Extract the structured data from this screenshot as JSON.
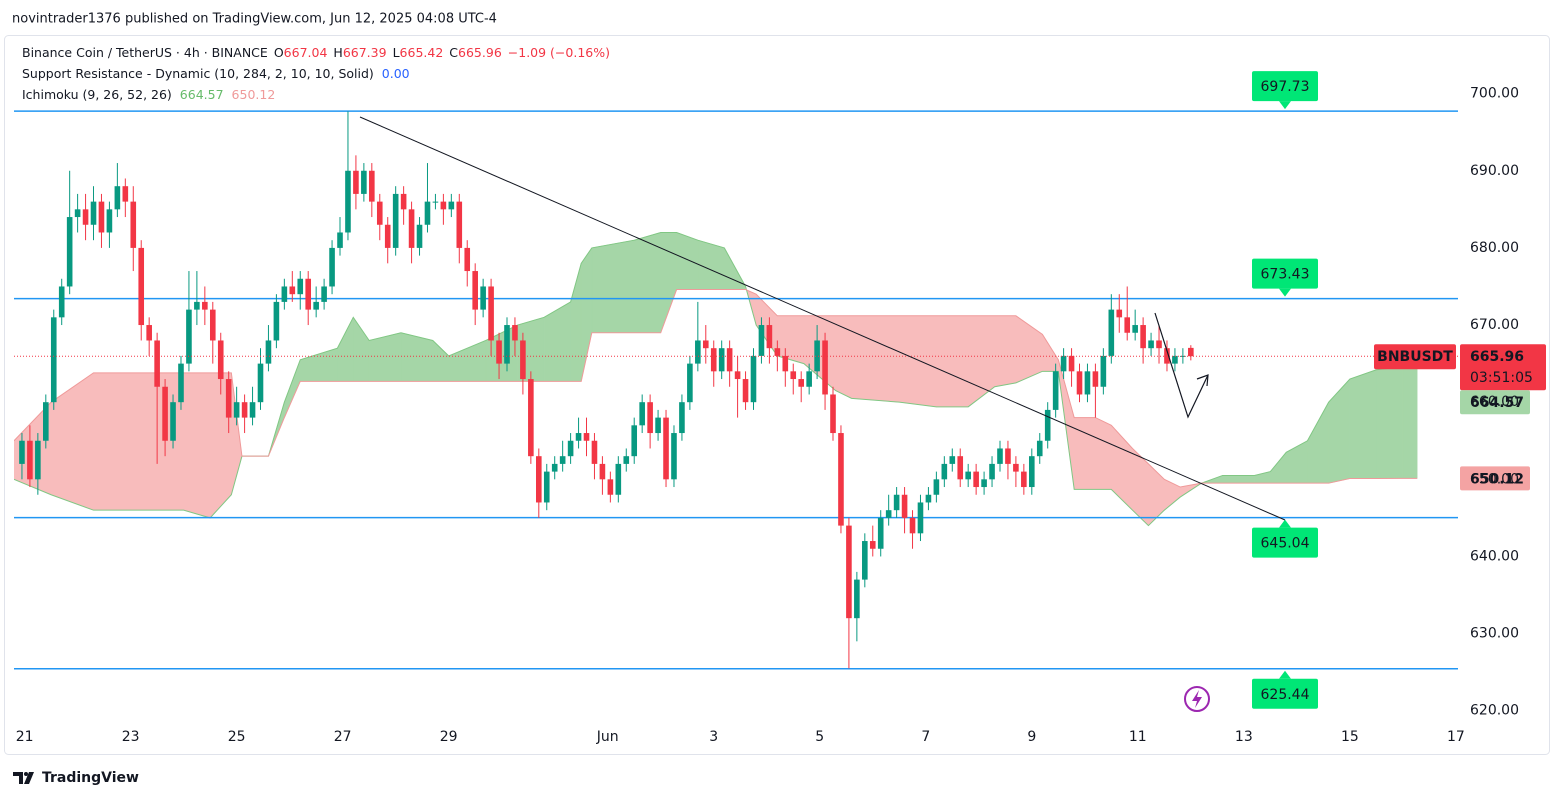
{
  "header": {
    "byline": "novintrader1376 published on TradingView.com, Jun 12, 2025 04:08 UTC-4"
  },
  "chart_data": {
    "type": "candlestick",
    "title": "Binance Coin / TetherUS · 4h · BINANCE",
    "legend_labels": {
      "open": "O",
      "high": "H",
      "low": "L",
      "close": "C"
    },
    "change": "−1.09 (−0.16%)",
    "countdown": "03:51:05",
    "indicator": {
      "name": "Support Resistance - Dynamic (10, 284, 2, 10, 10, Solid)",
      "value": "0.00",
      "color": "#2196f3",
      "label_color": "#00e676",
      "levels": [
        697.73,
        673.43,
        645.04,
        625.44
      ]
    },
    "series": [
      {
        "name": "BNBUSDT",
        "type": "candlestick",
        "up_color": "#089981",
        "down_color": "#f23645",
        "x": [
          20.95,
          21.1,
          21.25,
          21.4,
          21.55,
          21.7,
          21.85,
          22,
          22.15,
          22.3,
          22.45,
          22.6,
          22.75,
          22.9,
          23.05,
          23.2,
          23.35,
          23.5,
          23.65,
          23.8,
          23.95,
          24.1,
          24.25,
          24.4,
          24.55,
          24.7,
          24.85,
          25,
          25.15,
          25.3,
          25.45,
          25.6,
          25.75,
          25.9,
          26.05,
          26.2,
          26.35,
          26.5,
          26.65,
          26.8,
          26.95,
          27.1,
          27.25,
          27.4,
          27.55,
          27.7,
          27.85,
          28,
          28.15,
          28.3,
          28.45,
          28.6,
          28.75,
          28.9,
          29.05,
          29.2,
          29.35,
          29.5,
          29.65,
          29.8,
          29.95,
          30.1,
          30.25,
          30.4,
          30.55,
          30.7,
          30.85,
          31,
          31.15,
          31.3,
          31.45,
          31.6,
          31.75,
          31.9,
          32.05,
          32.2,
          32.35,
          32.5,
          32.65,
          32.8,
          32.95,
          33.1,
          33.25,
          33.4,
          33.55,
          33.7,
          33.85,
          34,
          34.15,
          34.3,
          34.45,
          34.6,
          34.75,
          34.9,
          35.05,
          35.2,
          35.35,
          35.5,
          35.65,
          35.8,
          35.95,
          36.1,
          36.25,
          36.4,
          36.55,
          36.7,
          36.85,
          37,
          37.15,
          37.3,
          37.45,
          37.6,
          37.75,
          37.9,
          38.05,
          38.2,
          38.35,
          38.5,
          38.65,
          38.8,
          38.95,
          39.1,
          39.25,
          39.4,
          39.55,
          39.7,
          39.85,
          40,
          40.15,
          40.3,
          40.45,
          40.6,
          40.75,
          40.9,
          41.05,
          41.2,
          41.35,
          41.5,
          41.65,
          41.8,
          41.95,
          42.1,
          42.25,
          42.4,
          42.55,
          42.7,
          42.85,
          43
        ],
        "open": [
          652,
          655,
          650,
          655,
          660,
          671,
          675,
          684,
          685,
          683,
          686,
          682,
          685,
          688,
          686,
          680,
          670,
          668,
          662,
          655,
          660,
          665,
          672,
          673,
          672,
          668,
          663,
          658,
          660,
          658,
          660,
          665,
          668,
          673,
          675,
          674,
          676,
          672,
          673,
          675,
          680,
          682,
          690,
          687,
          690,
          686,
          683,
          680,
          687,
          685,
          680,
          683,
          686,
          686,
          685,
          686,
          680,
          677,
          672,
          675,
          668,
          665,
          670,
          668,
          663,
          653,
          647,
          651,
          652,
          653,
          655,
          656,
          655,
          652,
          650,
          648,
          652,
          653,
          657,
          660,
          656,
          658,
          650,
          656,
          660,
          665,
          668,
          667,
          664,
          667,
          664,
          663,
          660,
          666,
          670,
          667,
          666,
          664,
          663,
          662,
          664,
          668,
          661,
          656,
          644,
          632,
          637,
          642,
          641,
          645,
          646,
          648,
          645,
          643,
          647,
          648,
          650,
          652,
          653,
          650,
          651,
          649,
          650,
          652,
          654,
          652,
          651,
          649,
          653,
          655,
          659,
          664,
          666,
          664,
          661,
          664,
          662,
          666,
          672,
          671,
          669,
          670,
          667,
          668,
          667,
          665,
          666,
          667.04
        ],
        "high": [
          656,
          657,
          656,
          661,
          672,
          676,
          690,
          687,
          687,
          688,
          687,
          686,
          691,
          689,
          688,
          681,
          671,
          669,
          663,
          661,
          666,
          677,
          677,
          675,
          673,
          669,
          664,
          662,
          661,
          662,
          667,
          670,
          674,
          676,
          677,
          677,
          677,
          675,
          676,
          681,
          684,
          697.7,
          692,
          691,
          691,
          687,
          684,
          688,
          688,
          686,
          684,
          691,
          687,
          687,
          687,
          687,
          681,
          678,
          676,
          676,
          669,
          671,
          671,
          669,
          664,
          654,
          652,
          653,
          655,
          656,
          658,
          658,
          656,
          653,
          651,
          653,
          654,
          658,
          661,
          661,
          659,
          659,
          657,
          661,
          666,
          673,
          670,
          668,
          668,
          668,
          666,
          664,
          667,
          671,
          671,
          668,
          667,
          665,
          664,
          665,
          670,
          669,
          662,
          657,
          645,
          638,
          643,
          644,
          646,
          648,
          649,
          649,
          646,
          648,
          649,
          651,
          653,
          654,
          654,
          652,
          652,
          651,
          653,
          655,
          655,
          653,
          652,
          654,
          656,
          660,
          665,
          667,
          667,
          665,
          665,
          665,
          667,
          674,
          674,
          675,
          672,
          671,
          669,
          670,
          668,
          667,
          667,
          667.39
        ],
        "low": [
          650,
          649,
          648,
          654,
          659,
          670,
          674,
          682,
          681,
          681,
          680,
          680,
          684,
          684,
          677,
          668,
          666,
          652,
          653,
          654,
          659,
          664,
          670,
          670,
          665,
          661,
          656,
          657,
          656,
          657,
          659,
          664,
          667,
          672,
          673,
          672,
          670,
          671,
          672,
          674,
          679,
          681,
          685,
          686,
          684,
          681,
          678,
          679,
          683,
          678,
          679,
          682,
          685,
          683,
          684,
          678,
          675,
          670,
          671,
          666,
          663,
          664,
          666,
          661,
          652,
          645,
          646,
          650,
          651,
          652,
          654,
          653,
          650,
          648,
          647,
          647,
          651,
          652,
          656,
          654,
          655,
          649,
          649,
          655,
          659,
          664,
          665,
          662,
          663,
          662,
          658,
          659,
          659,
          665,
          665,
          664,
          662,
          661,
          660,
          661,
          663,
          659,
          655,
          643,
          625.5,
          629,
          636,
          640,
          640,
          644,
          645,
          643,
          641,
          642,
          646,
          647,
          649,
          651,
          649,
          649,
          648,
          648,
          649,
          651,
          650,
          649,
          648,
          648,
          652,
          654,
          658,
          663,
          662,
          660,
          660,
          658,
          661,
          665,
          669,
          668,
          668,
          665,
          666,
          665,
          664,
          664,
          665,
          665.42
        ],
        "close": [
          655,
          650,
          655,
          660,
          671,
          675,
          684,
          685,
          683,
          686,
          682,
          685,
          688,
          686,
          680,
          670,
          668,
          662,
          655,
          660,
          665,
          672,
          673,
          672,
          668,
          663,
          658,
          660,
          658,
          660,
          665,
          668,
          673,
          675,
          674,
          676,
          672,
          673,
          675,
          680,
          682,
          690,
          687,
          690,
          686,
          683,
          680,
          687,
          685,
          680,
          683,
          686,
          686,
          685,
          686,
          680,
          677,
          672,
          675,
          668,
          665,
          670,
          668,
          663,
          653,
          647,
          651,
          652,
          653,
          655,
          656,
          655,
          652,
          650,
          648,
          652,
          653,
          657,
          660,
          656,
          658,
          650,
          656,
          660,
          665,
          668,
          667,
          664,
          667,
          664,
          663,
          660,
          666,
          670,
          667,
          666,
          664,
          663,
          662,
          664,
          668,
          661,
          656,
          644,
          632,
          637,
          642,
          641,
          645,
          646,
          648,
          645,
          643,
          647,
          648,
          650,
          652,
          653,
          650,
          651,
          649,
          650,
          652,
          654,
          652,
          651,
          649,
          653,
          655,
          659,
          664,
          666,
          664,
          661,
          664,
          662,
          666,
          672,
          671,
          669,
          670,
          667,
          668,
          667,
          665,
          666,
          666,
          665.96
        ]
      },
      {
        "name": "Ichimoku (9, 26, 52, 26)",
        "type": "ichimoku",
        "up_color": "#a5d6a7",
        "down_color": "#f8bcbc",
        "up_line": "#81c784",
        "down_line": "#ef9a9a",
        "x": [
          20.8,
          21.5,
          22.3,
          23,
          24,
          24.5,
          24.9,
          25.1,
          25.6,
          25.9,
          26.2,
          26.9,
          27.2,
          27.5,
          28.1,
          28.7,
          29,
          29.7,
          30.3,
          30.8,
          31.3,
          31.5,
          31.7,
          32.5,
          33,
          33.3,
          33.7,
          34.2,
          34.6,
          34.8,
          35.2,
          35.7,
          36.3,
          36.6,
          37.5,
          38.2,
          38.8,
          39.3,
          39.7,
          40.2,
          40.5,
          40.8,
          41.2,
          41.5,
          41.9,
          42.2,
          42.5,
          42.8,
          43.2,
          43.6,
          44.2,
          44.5,
          44.8,
          45.2,
          45.6,
          46,
          46.5,
          47,
          47.27
        ],
        "span_a": [
          650,
          648,
          646,
          646,
          646,
          645,
          648,
          653,
          653,
          660,
          665.5,
          667,
          671,
          668,
          669,
          668,
          666,
          668,
          670,
          671,
          673,
          678,
          680,
          681,
          682,
          682,
          681,
          680,
          675,
          670,
          666,
          665,
          661.5,
          660.5,
          660,
          659.4,
          659.4,
          662,
          662.5,
          664,
          664,
          648.7,
          648.7,
          648.7,
          646,
          644,
          646,
          647.7,
          649.5,
          650.5,
          650.5,
          651,
          653.5,
          655,
          660,
          663,
          664.2,
          664.6,
          664.57
        ],
        "span_b": [
          655,
          660,
          663.8,
          663.8,
          663.8,
          663.8,
          663.8,
          653,
          653,
          658,
          662.7,
          662.7,
          662.7,
          662.7,
          662.7,
          662.7,
          662.7,
          662.7,
          662.7,
          662.7,
          662.7,
          662.7,
          669,
          669,
          669,
          674.6,
          674.6,
          674.6,
          674.6,
          674,
          671.2,
          671.2,
          671.2,
          671.2,
          671.2,
          671.2,
          671.2,
          671.2,
          671.2,
          668.8,
          665.5,
          658,
          658,
          657,
          654,
          652,
          650,
          649,
          649.5,
          649.5,
          649.5,
          649.5,
          649.5,
          649.5,
          649.5,
          650.1,
          650.1,
          650.12,
          650.12
        ]
      }
    ],
    "xlim": [
      20.8,
      48.04
    ],
    "xticks": [
      21,
      23,
      25,
      27,
      29,
      {
        "value": 32,
        "label": "Jun"
      },
      {
        "value": 34,
        "label": "3"
      },
      {
        "value": 36,
        "label": "5"
      },
      {
        "value": 38,
        "label": "7"
      },
      {
        "value": 40,
        "label": "9"
      },
      {
        "value": 42,
        "label": "11"
      },
      {
        "value": 44,
        "label": "13"
      },
      {
        "value": 46,
        "label": "15"
      },
      {
        "value": 48,
        "label": "17"
      }
    ],
    "ylim": [
      618.8,
      707.6
    ],
    "yticks": [
      {
        "value": 700,
        "label": "700.00"
      },
      {
        "value": 690,
        "label": "690.00"
      },
      {
        "value": 680,
        "label": "680.00"
      },
      {
        "value": 670,
        "label": "670.00"
      },
      {
        "value": 660,
        "label": "660.00"
      },
      {
        "value": 650,
        "label": "650.00"
      },
      {
        "value": 640,
        "label": "640.00"
      },
      {
        "value": 630,
        "label": "630.00"
      },
      {
        "value": 620,
        "label": "620.00"
      }
    ],
    "grid": false
  },
  "footer": {
    "brand": "TradingView"
  }
}
